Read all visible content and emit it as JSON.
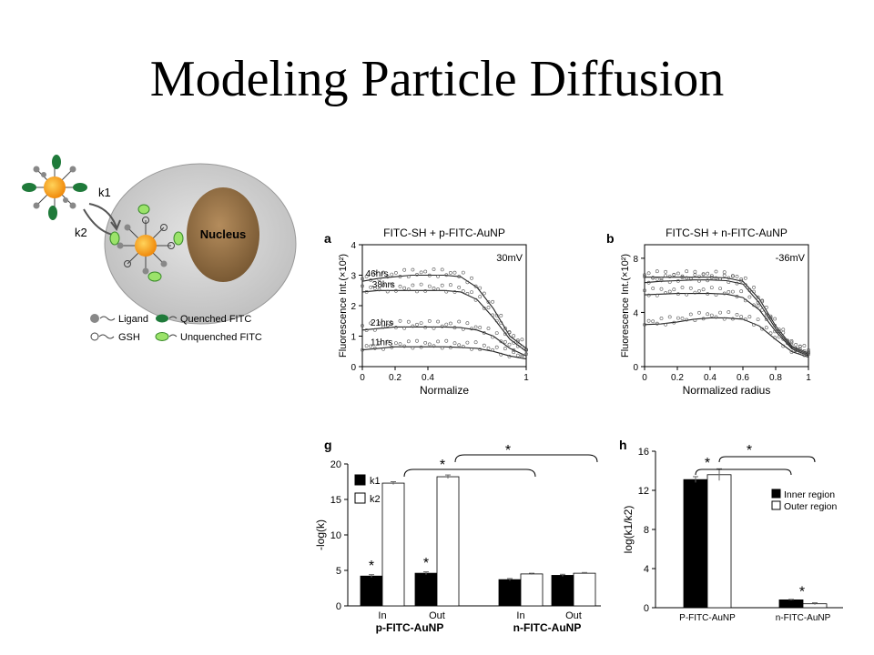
{
  "slide": {
    "title": "Modeling Particle Diffusion"
  },
  "cell_diagram": {
    "rate_labels": [
      "k1",
      "k2"
    ],
    "nucleus_label": "Nucleus",
    "legend": [
      {
        "label": "Ligand",
        "symbol": "ligand"
      },
      {
        "label": "Quenched FITC",
        "symbol": "quenched"
      },
      {
        "label": "GSH",
        "symbol": "gsh"
      },
      {
        "label": "Unquenched FITC",
        "symbol": "unquenched"
      }
    ],
    "colors": {
      "cell": "#cfcfcf",
      "nucleus": "#9b7548",
      "particle": "#f7a21b",
      "quenched": "#1f7a3a",
      "unquenched": "#9be36a"
    }
  },
  "chart_data": [
    {
      "panel": "a",
      "type": "scatter",
      "title": "FITC-SH + p-FITC-AuNP",
      "annotation": "30mV",
      "xlabel": "Normalize",
      "ylabel": "Fluorescence Int.(×10²)",
      "x_ticks": [
        "0",
        "0.2",
        "0.4",
        "1"
      ],
      "y_ticks": [
        "0",
        "1",
        "2",
        "3",
        "4"
      ],
      "xlim": [
        0,
        1
      ],
      "ylim": [
        0,
        4
      ],
      "series": [
        {
          "name": "46hrs",
          "label_x": 0.02,
          "fit": [
            [
              0,
              2.8
            ],
            [
              0.1,
              2.9
            ],
            [
              0.2,
              2.95
            ],
            [
              0.3,
              3.0
            ],
            [
              0.4,
              3.0
            ],
            [
              0.5,
              3.0
            ],
            [
              0.6,
              2.95
            ],
            [
              0.7,
              2.6
            ],
            [
              0.8,
              1.9
            ],
            [
              0.9,
              1.0
            ],
            [
              1.0,
              0.6
            ]
          ]
        },
        {
          "name": "38hrs",
          "label_x": 0.06,
          "fit": [
            [
              0,
              2.45
            ],
            [
              0.1,
              2.5
            ],
            [
              0.2,
              2.5
            ],
            [
              0.3,
              2.5
            ],
            [
              0.4,
              2.5
            ],
            [
              0.5,
              2.5
            ],
            [
              0.6,
              2.45
            ],
            [
              0.7,
              2.2
            ],
            [
              0.8,
              1.6
            ],
            [
              0.9,
              0.9
            ],
            [
              1.0,
              0.5
            ]
          ]
        },
        {
          "name": "21hrs",
          "label_x": 0.05,
          "fit": [
            [
              0,
              1.2
            ],
            [
              0.1,
              1.25
            ],
            [
              0.2,
              1.3
            ],
            [
              0.3,
              1.3
            ],
            [
              0.4,
              1.3
            ],
            [
              0.5,
              1.3
            ],
            [
              0.6,
              1.28
            ],
            [
              0.7,
              1.2
            ],
            [
              0.8,
              1.0
            ],
            [
              0.9,
              0.6
            ],
            [
              1.0,
              0.35
            ]
          ]
        },
        {
          "name": "11hrs",
          "label_x": 0.05,
          "fit": [
            [
              0,
              0.55
            ],
            [
              0.1,
              0.6
            ],
            [
              0.2,
              0.65
            ],
            [
              0.3,
              0.65
            ],
            [
              0.4,
              0.65
            ],
            [
              0.5,
              0.65
            ],
            [
              0.6,
              0.63
            ],
            [
              0.7,
              0.6
            ],
            [
              0.8,
              0.5
            ],
            [
              0.9,
              0.35
            ],
            [
              1.0,
              0.25
            ]
          ]
        }
      ]
    },
    {
      "panel": "b",
      "type": "scatter",
      "title": "FITC-SH + n-FITC-AuNP",
      "annotation": "-36mV",
      "xlabel": "Normalized radius",
      "ylabel": "Fluorescence Int.(×10²)",
      "x_ticks": [
        "0",
        "0.2",
        "0.4",
        "0.6",
        "0.8",
        "1"
      ],
      "y_ticks": [
        "0",
        "4",
        "8"
      ],
      "xlim": [
        0,
        1
      ],
      "ylim": [
        0,
        9
      ],
      "series": [
        {
          "name": "",
          "fit": [
            [
              0,
              6.6
            ],
            [
              0.1,
              6.6
            ],
            [
              0.2,
              6.6
            ],
            [
              0.3,
              6.6
            ],
            [
              0.4,
              6.6
            ],
            [
              0.5,
              6.55
            ],
            [
              0.6,
              6.3
            ],
            [
              0.7,
              5.0
            ],
            [
              0.8,
              3.0
            ],
            [
              0.9,
              1.5
            ],
            [
              1.0,
              1.0
            ]
          ]
        },
        {
          "name": "",
          "fit": [
            [
              0,
              6.2
            ],
            [
              0.1,
              6.3
            ],
            [
              0.2,
              6.35
            ],
            [
              0.3,
              6.4
            ],
            [
              0.4,
              6.4
            ],
            [
              0.5,
              6.35
            ],
            [
              0.6,
              6.1
            ],
            [
              0.7,
              4.7
            ],
            [
              0.8,
              2.8
            ],
            [
              0.9,
              1.4
            ],
            [
              1.0,
              0.9
            ]
          ]
        },
        {
          "name": "",
          "fit": [
            [
              0,
              5.3
            ],
            [
              0.1,
              5.35
            ],
            [
              0.2,
              5.4
            ],
            [
              0.3,
              5.4
            ],
            [
              0.4,
              5.4
            ],
            [
              0.5,
              5.35
            ],
            [
              0.6,
              5.1
            ],
            [
              0.7,
              4.2
            ],
            [
              0.8,
              2.6
            ],
            [
              0.9,
              1.3
            ],
            [
              1.0,
              0.8
            ]
          ]
        },
        {
          "name": "",
          "fit": [
            [
              0,
              3.1
            ],
            [
              0.1,
              3.15
            ],
            [
              0.2,
              3.3
            ],
            [
              0.3,
              3.5
            ],
            [
              0.4,
              3.6
            ],
            [
              0.5,
              3.6
            ],
            [
              0.6,
              3.5
            ],
            [
              0.7,
              3.0
            ],
            [
              0.8,
              2.0
            ],
            [
              0.9,
              1.1
            ],
            [
              1.0,
              0.7
            ]
          ]
        }
      ]
    },
    {
      "panel": "g",
      "type": "bar",
      "ylabel": "-log(k)",
      "ylim": [
        0,
        20
      ],
      "y_ticks": [
        "0",
        "5",
        "10",
        "15",
        "20"
      ],
      "categories": [
        "In",
        "Out",
        "In",
        "Out"
      ],
      "groups": [
        "p-FITC-AuNP",
        "n-FITC-AuNP"
      ],
      "legend_placement": "top-left",
      "series": [
        {
          "name": "k1",
          "values": [
            4.2,
            4.6,
            3.7,
            4.3
          ],
          "errors": [
            0.2,
            0.2,
            0.15,
            0.15
          ],
          "fill": "#000000"
        },
        {
          "name": "k2",
          "values": [
            17.3,
            18.2,
            4.5,
            4.6
          ],
          "errors": [
            0.2,
            0.25,
            0.1,
            0.1
          ],
          "fill": "#ffffff"
        }
      ],
      "significance": [
        "*",
        "*",
        "*",
        "*"
      ]
    },
    {
      "panel": "h",
      "type": "bar",
      "ylabel": "log(k1/k2)",
      "ylim": [
        0,
        16
      ],
      "y_ticks": [
        "0",
        "4",
        "8",
        "12",
        "16"
      ],
      "categories": [
        "P-FITC-AuNP",
        "n-FITC-AuNP"
      ],
      "legend_placement": "middle-right",
      "series": [
        {
          "name": "Inner region",
          "values": [
            13.1,
            0.8
          ],
          "errors": [
            0.3,
            0.05
          ],
          "fill": "#000000"
        },
        {
          "name": "Outer region",
          "values": [
            13.6,
            0.4
          ],
          "errors": [
            0.6,
            0.1
          ],
          "fill": "#ffffff"
        }
      ],
      "significance": [
        "*",
        "*",
        "*"
      ]
    }
  ]
}
